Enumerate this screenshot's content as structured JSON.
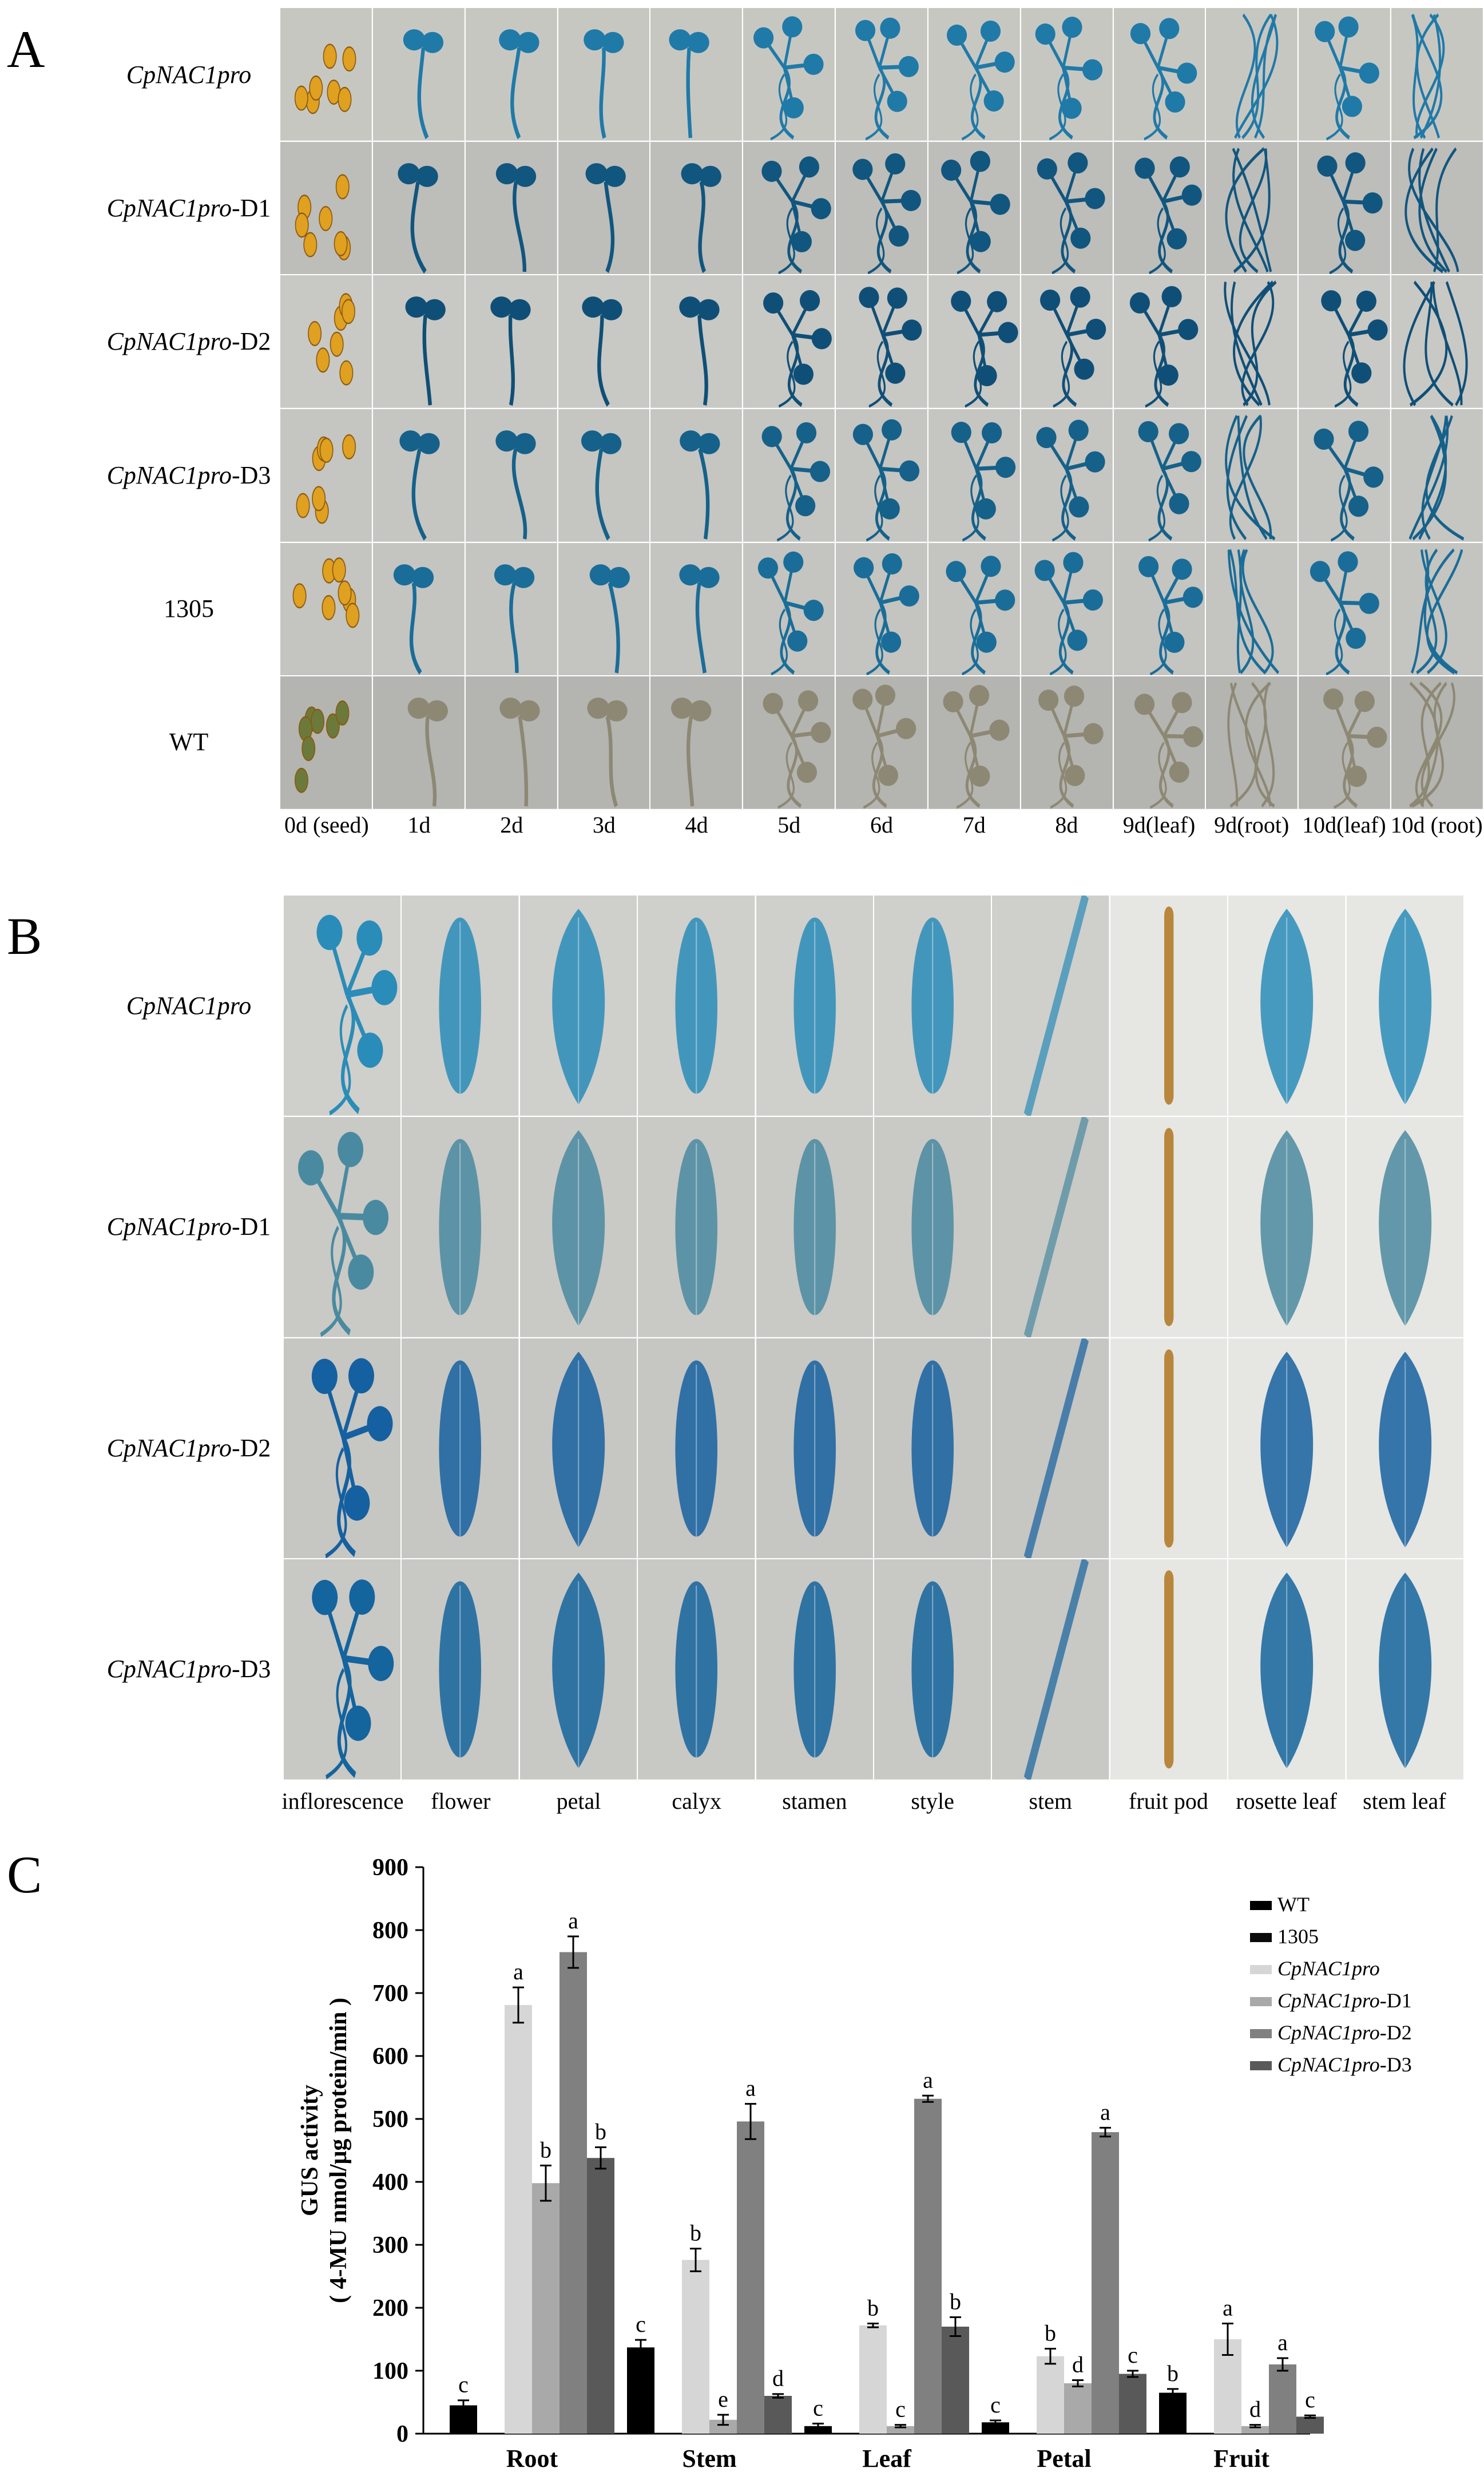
{
  "panels": {
    "A": {
      "letter": "A",
      "rows": [
        {
          "name": "CpNAC1pro",
          "suffix": "",
          "bg": "#c7c7c2",
          "stain": "#1f7aa8",
          "ticker": "wt-row-0"
        },
        {
          "name": "CpNAC1pro",
          "suffix": "-D1",
          "bg": "#bdbdba",
          "stain": "#11567e",
          "ticker": "d1"
        },
        {
          "name": "CpNAC1pro",
          "suffix": "-D2",
          "bg": "#c8c8c4",
          "stain": "#0f4f77",
          "ticker": "d2"
        },
        {
          "name": "CpNAC1pro",
          "suffix": "-D3",
          "bg": "#c5c5c1",
          "stain": "#15618a",
          "ticker": "d3"
        },
        {
          "name": "1305",
          "suffix": "",
          "bg": "#c4c4c0",
          "stain": "#1a6d98",
          "ticker": "v1305"
        },
        {
          "name": "WT",
          "suffix": "",
          "bg": "#b4b4b0",
          "stain": "#8d8874",
          "ticker": "wt"
        }
      ],
      "columns": [
        "0d (seed)",
        "1d",
        "2d",
        "3d",
        "4d",
        "5d",
        "6d",
        "7d",
        "8d",
        "9d(leaf)",
        "9d(root)",
        "10d(leaf)",
        "10d (root)"
      ]
    },
    "B": {
      "letter": "B",
      "rows": [
        {
          "name": "CpNAC1pro",
          "suffix": "",
          "bg": "#cfcfcb",
          "stain": "#2a8cb8"
        },
        {
          "name": "CpNAC1pro",
          "suffix": "-D1",
          "bg": "#c9c9c5",
          "stain": "#4a8aa0"
        },
        {
          "name": "CpNAC1pro",
          "suffix": "-D2",
          "bg": "#c6c6c2",
          "stain": "#1560a0"
        },
        {
          "name": "CpNAC1pro",
          "suffix": "-D3",
          "bg": "#c8c8c4",
          "stain": "#14649e"
        }
      ],
      "columns": [
        "inflorescence",
        "flower",
        "petal",
        "calyx",
        "stamen",
        "style",
        "stem",
        "fruit pod",
        "rosette leaf",
        "stem leaf"
      ]
    },
    "C": {
      "letter": "C"
    }
  },
  "chart_data": {
    "type": "bar",
    "ylabel_line1": "GUS activity",
    "ylabel_line2": "( 4-MU nmol/μg protein/min )",
    "ylim": [
      0,
      900
    ],
    "yticks": [
      0,
      100,
      200,
      300,
      400,
      500,
      600,
      700,
      800,
      900
    ],
    "categories": [
      "Root",
      "Stem",
      "Leaf",
      "Petal",
      "Fruit"
    ],
    "series": [
      {
        "name": "WT",
        "suffix": "",
        "italic": false,
        "color": "#000000",
        "values": [
          45,
          137,
          12,
          18,
          65
        ],
        "errors": [
          8,
          12,
          4,
          3,
          6
        ],
        "letters": [
          "c",
          "c",
          "c",
          "c",
          "b"
        ]
      },
      {
        "name": "1305",
        "suffix": "",
        "italic": false,
        "color": "#0b0b0b",
        "values": [
          null,
          null,
          null,
          null,
          null
        ],
        "errors": [
          null,
          null,
          null,
          null,
          null
        ],
        "letters": [
          "",
          "",
          "",
          "",
          ""
        ]
      },
      {
        "name": "CpNAC1pro",
        "suffix": "",
        "italic": true,
        "color": "#d6d6d6",
        "values": [
          681,
          276,
          172,
          123,
          150
        ],
        "errors": [
          28,
          18,
          3,
          12,
          25
        ],
        "letters": [
          "a",
          "b",
          "b",
          "b",
          "a"
        ]
      },
      {
        "name": "CpNAC1pro",
        "suffix": "-D1",
        "italic": true,
        "color": "#a9a9a9",
        "values": [
          398,
          22,
          12,
          80,
          12
        ],
        "errors": [
          28,
          8,
          2,
          5,
          2
        ],
        "letters": [
          "b",
          "e",
          "c",
          "d",
          "d"
        ]
      },
      {
        "name": "CpNAC1pro",
        "suffix": "-D2",
        "italic": true,
        "color": "#808080",
        "values": [
          765,
          496,
          532,
          479,
          110
        ],
        "errors": [
          25,
          28,
          5,
          7,
          10
        ],
        "letters": [
          "a",
          "a",
          "a",
          "a",
          "a"
        ]
      },
      {
        "name": "CpNAC1pro",
        "suffix": "-D3",
        "italic": true,
        "color": "#595959",
        "values": [
          438,
          60,
          170,
          95,
          27
        ],
        "errors": [
          17,
          3,
          15,
          5,
          2
        ],
        "letters": [
          "b",
          "d",
          "b",
          "c",
          "c"
        ]
      }
    ]
  }
}
